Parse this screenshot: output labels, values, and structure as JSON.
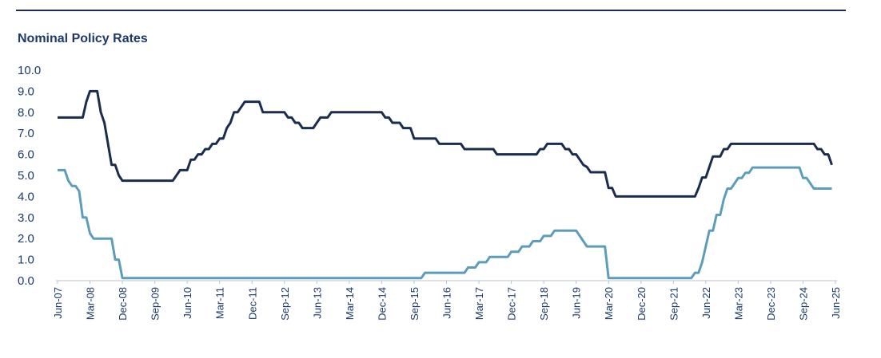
{
  "chart_data": {
    "type": "line",
    "title": "Nominal Policy Rates",
    "xlabel": "",
    "ylabel": "",
    "ylim": [
      0,
      10
    ],
    "yticks": [
      "0.0",
      "1.0",
      "2.0",
      "3.0",
      "4.0",
      "5.0",
      "6.0",
      "7.0",
      "8.0",
      "9.0",
      "10.0"
    ],
    "xticks": [
      "Jun-07",
      "Mar-08",
      "Dec-08",
      "Sep-09",
      "Jun-10",
      "Mar-11",
      "Dec-11",
      "Sep-12",
      "Jun-13",
      "Mar-14",
      "Dec-14",
      "Sep-15",
      "Jun-16",
      "Mar-17",
      "Dec-17",
      "Sep-18",
      "Jun-19",
      "Mar-20",
      "Dec-20",
      "Sep-21",
      "Jun-22",
      "Mar-23",
      "Dec-23",
      "Sep-24",
      "Jun-25"
    ],
    "grid": false,
    "legend": "none",
    "series": [
      {
        "color": "#1b2d4f",
        "points": [
          [
            "2007-06",
            7.75
          ],
          [
            "2008-01",
            7.75
          ],
          [
            "2008-02",
            8.5
          ],
          [
            "2008-03",
            9.0
          ],
          [
            "2008-05",
            9.0
          ],
          [
            "2008-06",
            8.0
          ],
          [
            "2008-07",
            7.5
          ],
          [
            "2008-08",
            6.5
          ],
          [
            "2008-09",
            5.5
          ],
          [
            "2008-10",
            5.5
          ],
          [
            "2008-11",
            5.0
          ],
          [
            "2008-12",
            4.75
          ],
          [
            "2010-02",
            4.75
          ],
          [
            "2010-03",
            5.0
          ],
          [
            "2010-04",
            5.25
          ],
          [
            "2010-06",
            5.25
          ],
          [
            "2010-07",
            5.75
          ],
          [
            "2010-08",
            5.75
          ],
          [
            "2010-09",
            6.0
          ],
          [
            "2010-10",
            6.0
          ],
          [
            "2010-11",
            6.25
          ],
          [
            "2010-12",
            6.25
          ],
          [
            "2011-01",
            6.5
          ],
          [
            "2011-02",
            6.5
          ],
          [
            "2011-03",
            6.75
          ],
          [
            "2011-04",
            6.75
          ],
          [
            "2011-05",
            7.25
          ],
          [
            "2011-06",
            7.5
          ],
          [
            "2011-07",
            8.0
          ],
          [
            "2011-08",
            8.0
          ],
          [
            "2011-09",
            8.25
          ],
          [
            "2011-10",
            8.5
          ],
          [
            "2012-02",
            8.5
          ],
          [
            "2012-03",
            8.0
          ],
          [
            "2012-09",
            8.0
          ],
          [
            "2012-10",
            7.75
          ],
          [
            "2012-11",
            7.75
          ],
          [
            "2012-12",
            7.5
          ],
          [
            "2013-01",
            7.5
          ],
          [
            "2013-02",
            7.25
          ],
          [
            "2013-05",
            7.25
          ],
          [
            "2013-06",
            7.5
          ],
          [
            "2013-07",
            7.75
          ],
          [
            "2013-09",
            7.75
          ],
          [
            "2013-10",
            8.0
          ],
          [
            "2014-12",
            8.0
          ],
          [
            "2015-01",
            7.75
          ],
          [
            "2015-02",
            7.75
          ],
          [
            "2015-03",
            7.5
          ],
          [
            "2015-05",
            7.5
          ],
          [
            "2015-06",
            7.25
          ],
          [
            "2015-08",
            7.25
          ],
          [
            "2015-09",
            6.75
          ],
          [
            "2016-03",
            6.75
          ],
          [
            "2016-04",
            6.5
          ],
          [
            "2016-10",
            6.5
          ],
          [
            "2016-11",
            6.25
          ],
          [
            "2017-07",
            6.25
          ],
          [
            "2017-08",
            6.0
          ],
          [
            "2018-07",
            6.0
          ],
          [
            "2018-08",
            6.25
          ],
          [
            "2018-09",
            6.25
          ],
          [
            "2018-10",
            6.5
          ],
          [
            "2019-02",
            6.5
          ],
          [
            "2019-03",
            6.25
          ],
          [
            "2019-04",
            6.25
          ],
          [
            "2019-05",
            6.0
          ],
          [
            "2019-06",
            6.0
          ],
          [
            "2019-07",
            5.75
          ],
          [
            "2019-08",
            5.5
          ],
          [
            "2019-09",
            5.4
          ],
          [
            "2019-10",
            5.15
          ],
          [
            "2020-02",
            5.15
          ],
          [
            "2020-03",
            4.4
          ],
          [
            "2020-04",
            4.4
          ],
          [
            "2020-05",
            4.0
          ],
          [
            "2022-02",
            4.0
          ],
          [
            "2022-03",
            4.0
          ],
          [
            "2022-04",
            4.4
          ],
          [
            "2022-05",
            4.9
          ],
          [
            "2022-06",
            4.9
          ],
          [
            "2022-07",
            5.4
          ],
          [
            "2022-08",
            5.9
          ],
          [
            "2022-09",
            5.9
          ],
          [
            "2022-10",
            5.9
          ],
          [
            "2022-11",
            6.25
          ],
          [
            "2022-12",
            6.25
          ],
          [
            "2023-01",
            6.5
          ],
          [
            "2024-12",
            6.5
          ],
          [
            "2025-01",
            6.25
          ],
          [
            "2025-02",
            6.25
          ],
          [
            "2025-03",
            6.0
          ],
          [
            "2025-04",
            6.0
          ],
          [
            "2025-05",
            5.5
          ]
        ]
      },
      {
        "color": "#5d9dbb",
        "points": [
          [
            "2007-06",
            5.25
          ],
          [
            "2007-08",
            5.25
          ],
          [
            "2007-09",
            4.75
          ],
          [
            "2007-10",
            4.5
          ],
          [
            "2007-11",
            4.5
          ],
          [
            "2007-12",
            4.25
          ],
          [
            "2008-01",
            3.0
          ],
          [
            "2008-02",
            3.0
          ],
          [
            "2008-03",
            2.25
          ],
          [
            "2008-04",
            2.0
          ],
          [
            "2008-09",
            2.0
          ],
          [
            "2008-10",
            1.0
          ],
          [
            "2008-11",
            1.0
          ],
          [
            "2008-12",
            0.125
          ],
          [
            "2015-11",
            0.125
          ],
          [
            "2015-12",
            0.375
          ],
          [
            "2016-11",
            0.375
          ],
          [
            "2016-12",
            0.625
          ],
          [
            "2017-02",
            0.625
          ],
          [
            "2017-03",
            0.875
          ],
          [
            "2017-05",
            0.875
          ],
          [
            "2017-06",
            1.125
          ],
          [
            "2017-11",
            1.125
          ],
          [
            "2017-12",
            1.375
          ],
          [
            "2018-02",
            1.375
          ],
          [
            "2018-03",
            1.625
          ],
          [
            "2018-05",
            1.625
          ],
          [
            "2018-06",
            1.875
          ],
          [
            "2018-08",
            1.875
          ],
          [
            "2018-09",
            2.125
          ],
          [
            "2018-11",
            2.125
          ],
          [
            "2018-12",
            2.375
          ],
          [
            "2019-06",
            2.375
          ],
          [
            "2019-07",
            2.125
          ],
          [
            "2019-08",
            1.875
          ],
          [
            "2019-09",
            1.625
          ],
          [
            "2020-02",
            1.625
          ],
          [
            "2020-03",
            0.125
          ],
          [
            "2022-02",
            0.125
          ],
          [
            "2022-03",
            0.375
          ],
          [
            "2022-04",
            0.375
          ],
          [
            "2022-05",
            0.875
          ],
          [
            "2022-06",
            1.625
          ],
          [
            "2022-07",
            2.375
          ],
          [
            "2022-08",
            2.375
          ],
          [
            "2022-09",
            3.125
          ],
          [
            "2022-10",
            3.125
          ],
          [
            "2022-11",
            3.875
          ],
          [
            "2022-12",
            4.375
          ],
          [
            "2023-01",
            4.375
          ],
          [
            "2023-02",
            4.625
          ],
          [
            "2023-03",
            4.875
          ],
          [
            "2023-04",
            4.875
          ],
          [
            "2023-05",
            5.125
          ],
          [
            "2023-06",
            5.125
          ],
          [
            "2023-07",
            5.375
          ],
          [
            "2024-08",
            5.375
          ],
          [
            "2024-09",
            4.875
          ],
          [
            "2024-10",
            4.875
          ],
          [
            "2024-11",
            4.625
          ],
          [
            "2024-12",
            4.375
          ],
          [
            "2025-05",
            4.375
          ]
        ]
      }
    ]
  }
}
